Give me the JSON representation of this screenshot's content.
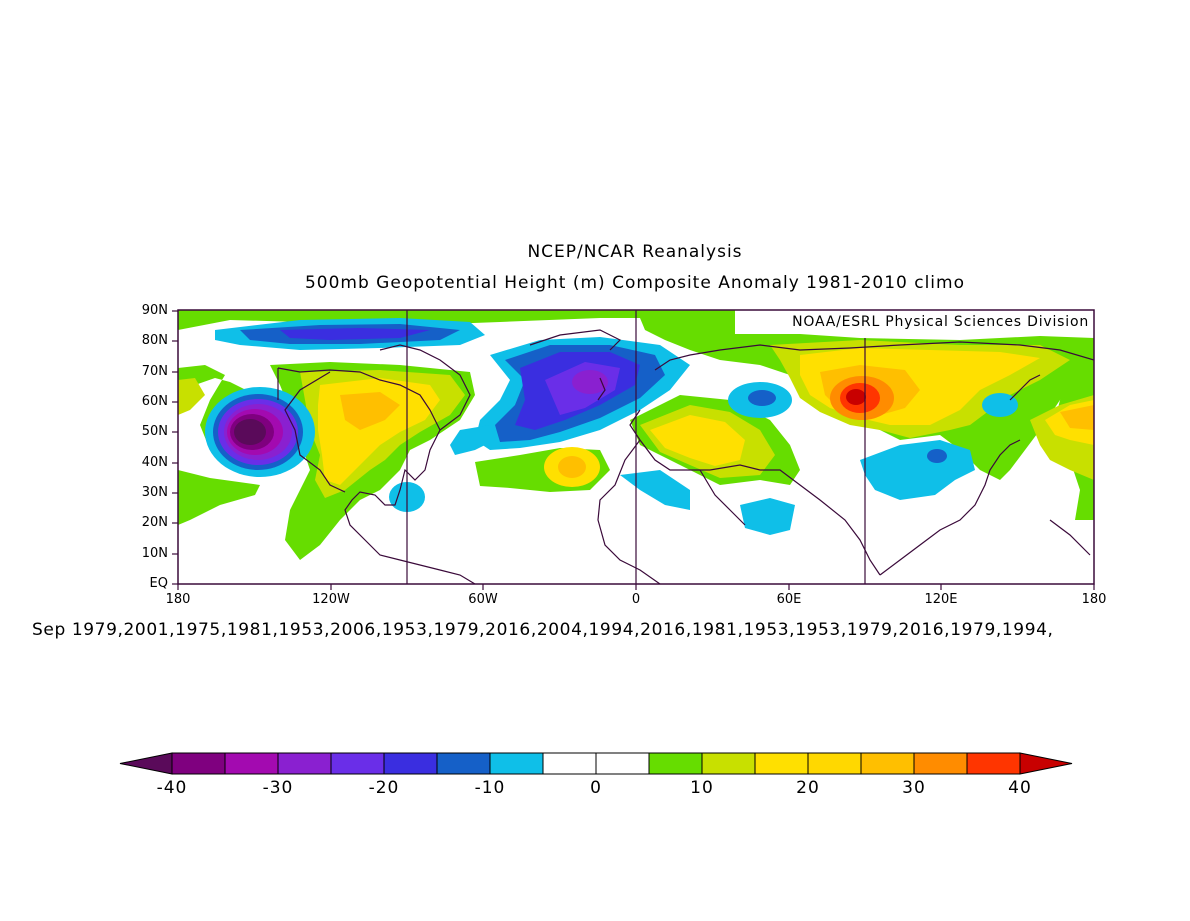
{
  "title_line1": "NCEP/NCAR Reanalysis",
  "title_line2": "500mb Geopotential Height (m) Composite Anomaly 1981-2010 climo",
  "credit": "NOAA/ESRL Physical Sciences Division",
  "years_line": "Sep 1979,2001,1975,1981,1953,2006,1953,1979,2016,2004,1994,2016,1981,1953,1953,1979,2016,1979,1994,",
  "lat_labels": [
    "90N",
    "80N",
    "70N",
    "60N",
    "50N",
    "40N",
    "30N",
    "20N",
    "10N",
    "EQ"
  ],
  "lon_labels": [
    "180",
    "120W",
    "60W",
    "0",
    "60E",
    "120E",
    "180"
  ],
  "colorbar": {
    "labels": [
      "-40",
      "-30",
      "-20",
      "-10",
      "0",
      "10",
      "20",
      "30",
      "40"
    ],
    "colors": [
      "#5a0a5a",
      "#7f007f",
      "#a30ab0",
      "#8a20d0",
      "#6a2ee8",
      "#3a2ee0",
      "#1560c8",
      "#0fbfe8",
      "#ffffff",
      "#ffffff",
      "#66dd00",
      "#c8e000",
      "#ffe000",
      "#ffd800",
      "#ffbf00",
      "#ff8c00",
      "#ff3500",
      "#c80000"
    ]
  },
  "map": {
    "lon_range": [
      -180,
      180
    ],
    "lat_range": [
      0,
      90
    ]
  }
}
